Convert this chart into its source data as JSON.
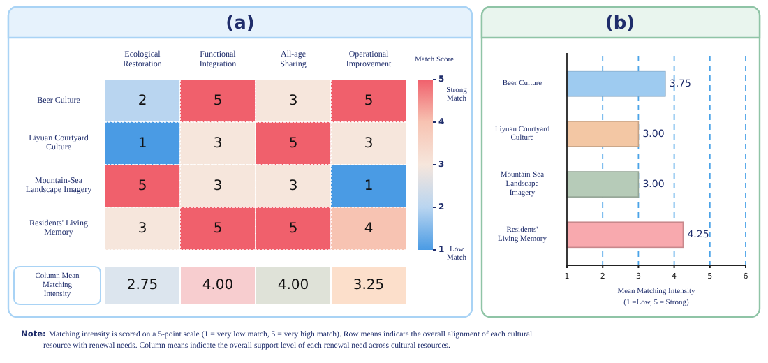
{
  "chart_data": [
    {
      "type": "heatmap",
      "title": "(a)",
      "categories": [
        "Ecological Restoration",
        "Functional Integration",
        "All-age Sharing",
        "Operational Improvement"
      ],
      "y_categories": [
        "Beer Culture",
        "Liyuan Courtyard Culture",
        "Mountain-Sea Landscape Imagery",
        "Residents' Living Memory"
      ],
      "cells": [
        [
          2,
          5,
          3,
          5
        ],
        [
          1,
          3,
          5,
          3
        ],
        [
          5,
          3,
          3,
          1
        ],
        [
          3,
          5,
          5,
          4
        ]
      ],
      "data_labels": true,
      "clabel": "Match Score",
      "clim": [
        1,
        5
      ],
      "cticks": [
        1,
        2,
        3,
        4,
        5
      ],
      "annotations": [
        "Strong Match",
        "Low Match"
      ]
    },
    {
      "type": "heatmap",
      "categories": [
        null,
        null,
        null,
        null
      ],
      "y_categories": [
        "Column Mean Matching Intensity"
      ],
      "cells": [
        [
          2.75,
          4.0,
          4.0,
          3.25
        ]
      ],
      "cell_labels": [
        [
          "2.75",
          "4.00",
          "4.00",
          "3.25"
        ]
      ],
      "colors": [
        "#dce5ee",
        "#f7cdcf",
        "#dfe2d8",
        "#fcdfcb"
      ],
      "annotations": [
        "Note: Matching intensity is scored on a 5-point scale (1 = very low match, 5 = very high match). Row means indicate the overall alignment of each cultural resource with renewal needs. Column means indicate the overall support level of each renewal need across cultural resources."
      ]
    },
    {
      "type": "bar",
      "title": "(b)",
      "orientation": "horizontal",
      "categories": [
        "Beer Culture",
        "Liyuan Courtyard Culture",
        "Mountain-Sea Landscape Imagery",
        "Residents' Living Memory"
      ],
      "values": [
        3.75,
        3.0,
        3.0,
        4.25
      ],
      "value_labels": [
        "3.75",
        "3.00",
        "3.00",
        "4.25"
      ],
      "colors": [
        "#9ecbf0",
        "#f3c7a4",
        "#b6cbb8",
        "#f8a9ae"
      ],
      "xlim": [
        1,
        6
      ],
      "xticks": [
        1,
        2,
        3,
        4,
        5,
        6
      ],
      "grid": "x",
      "line_style": "dashed",
      "xlabel": "Mean Matching Intensity\n(1 =Low, 5 = Strong)"
    }
  ]
}
